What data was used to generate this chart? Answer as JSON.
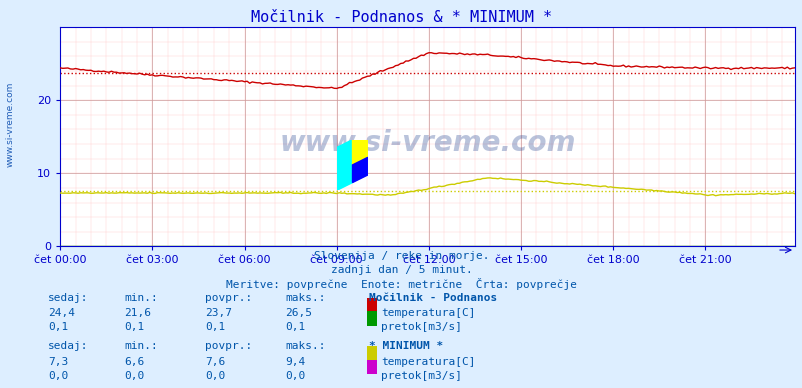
{
  "title": "Močilnik - Podnanos & * MINIMUM *",
  "subtitle1": "Slovenija / reke in morje.",
  "subtitle2": "zadnji dan / 5 minut.",
  "subtitle3": "Meritve: povprečne  Enote: metrične  Črta: povprečje",
  "bg_color": "#ddeeff",
  "plot_bg_color": "#ffffff",
  "xticklabels": [
    "čet 00:00",
    "čet 03:00",
    "čet 06:00",
    "čet 09:00",
    "čet 12:00",
    "čet 15:00",
    "čet 18:00",
    "čet 21:00"
  ],
  "xtick_positions": [
    0,
    36,
    72,
    108,
    144,
    180,
    216,
    252
  ],
  "n_points": 288,
  "ylim": [
    0,
    30
  ],
  "yticks": [
    0,
    10,
    20
  ],
  "title_color": "#0000cc",
  "watermark": "www.si-vreme.com",
  "watermark_color": "#1a3a8a",
  "watermark_alpha": 0.3,
  "label_color": "#0055aa",
  "station1_name": "Močilnik - Podnanos",
  "station2_name": "* MINIMUM *",
  "col_headers": [
    "sedaj:",
    "min.:",
    "povpr.:",
    "maks.:"
  ],
  "station1_temp": {
    "sedaj": "24,4",
    "min": "21,6",
    "povpr": "23,7",
    "maks": "26,5",
    "povpr_val": 23.7,
    "color": "#cc0000",
    "label": "temperatura[C]"
  },
  "station1_flow": {
    "sedaj": "0,1",
    "min": "0,1",
    "povpr": "0,1",
    "maks": "0,1",
    "povpr_val": 0.1,
    "color": "#009900",
    "label": "pretok[m3/s]"
  },
  "station2_temp": {
    "sedaj": "7,3",
    "min": "6,6",
    "povpr": "7,6",
    "maks": "9,4",
    "povpr_val": 7.6,
    "color": "#cccc00",
    "label": "temperatura[C]"
  },
  "station2_flow": {
    "sedaj": "0,0",
    "min": "0,0",
    "povpr": "0,0",
    "maks": "0,0",
    "povpr_val": 0.0,
    "color": "#cc00cc",
    "label": "pretok[m3/s]"
  },
  "line1_color": "#cc0000",
  "line2_color": "#cccc00",
  "axis_color": "#0000cc",
  "tick_color": "#0000cc",
  "left_label": "www.si-vreme.com"
}
